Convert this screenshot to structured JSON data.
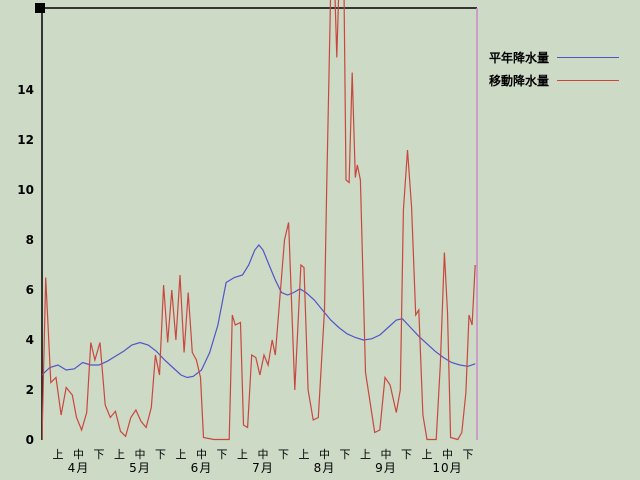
{
  "colors": {
    "background": "#ccdac6",
    "axis": "#000000",
    "text": "#000000",
    "cursor": "#cc88cc"
  },
  "chart_data": {
    "type": "line",
    "title": "",
    "xlabel": "",
    "ylabel": "",
    "ylim": [
      0,
      17.3
    ],
    "yticks": [
      0,
      2,
      4,
      6,
      8,
      10,
      12,
      14
    ],
    "grid": false,
    "legend_position": "top-right",
    "x_axis": {
      "months": [
        "4月",
        "5月",
        "6月",
        "7月",
        "8月",
        "9月",
        "10月"
      ],
      "period_labels": [
        "上",
        "中",
        "下"
      ]
    },
    "legend": [
      {
        "label": "平年降水量",
        "color": "#5055c8"
      },
      {
        "label": "移動降水量",
        "color": "#c9473f"
      }
    ],
    "cursor_line": {
      "x": 20.44,
      "color": "#cc88cc"
    },
    "series": [
      {
        "name": "平年降水量",
        "color": "#5055c8",
        "points": [
          [
            -0.78,
            2.6
          ],
          [
            -0.4,
            2.9
          ],
          [
            0,
            3.0
          ],
          [
            0.4,
            2.8
          ],
          [
            0.8,
            2.85
          ],
          [
            1.2,
            3.1
          ],
          [
            1.6,
            3.0
          ],
          [
            2.0,
            3.0
          ],
          [
            2.4,
            3.15
          ],
          [
            2.8,
            3.35
          ],
          [
            3.2,
            3.55
          ],
          [
            3.6,
            3.8
          ],
          [
            4.0,
            3.9
          ],
          [
            4.4,
            3.8
          ],
          [
            4.8,
            3.55
          ],
          [
            5.2,
            3.2
          ],
          [
            5.6,
            2.9
          ],
          [
            6.0,
            2.6
          ],
          [
            6.3,
            2.5
          ],
          [
            6.6,
            2.55
          ],
          [
            7.0,
            2.8
          ],
          [
            7.4,
            3.5
          ],
          [
            7.8,
            4.6
          ],
          [
            8.2,
            6.3
          ],
          [
            8.6,
            6.5
          ],
          [
            9.0,
            6.6
          ],
          [
            9.3,
            7.0
          ],
          [
            9.6,
            7.6
          ],
          [
            9.8,
            7.8
          ],
          [
            10.0,
            7.6
          ],
          [
            10.3,
            7.0
          ],
          [
            10.6,
            6.4
          ],
          [
            10.9,
            5.9
          ],
          [
            11.2,
            5.8
          ],
          [
            11.5,
            5.9
          ],
          [
            11.8,
            6.05
          ],
          [
            12.1,
            5.9
          ],
          [
            12.5,
            5.6
          ],
          [
            12.9,
            5.2
          ],
          [
            13.3,
            4.8
          ],
          [
            13.7,
            4.5
          ],
          [
            14.1,
            4.25
          ],
          [
            14.5,
            4.1
          ],
          [
            14.9,
            4.0
          ],
          [
            15.3,
            4.05
          ],
          [
            15.7,
            4.2
          ],
          [
            16.1,
            4.5
          ],
          [
            16.5,
            4.8
          ],
          [
            16.8,
            4.85
          ],
          [
            17.2,
            4.5
          ],
          [
            17.6,
            4.15
          ],
          [
            18.0,
            3.85
          ],
          [
            18.4,
            3.55
          ],
          [
            18.8,
            3.3
          ],
          [
            19.2,
            3.1
          ],
          [
            19.6,
            3.0
          ],
          [
            20.0,
            2.95
          ],
          [
            20.35,
            3.05
          ]
        ]
      },
      {
        "name": "移動降水量",
        "color": "#c9473f",
        "points": [
          [
            -0.78,
            0.0
          ],
          [
            -0.6,
            6.5
          ],
          [
            -0.35,
            2.3
          ],
          [
            -0.1,
            2.5
          ],
          [
            0.15,
            1.0
          ],
          [
            0.4,
            2.1
          ],
          [
            0.7,
            1.8
          ],
          [
            0.9,
            0.9
          ],
          [
            1.15,
            0.4
          ],
          [
            1.4,
            1.1
          ],
          [
            1.6,
            3.9
          ],
          [
            1.8,
            3.2
          ],
          [
            2.05,
            3.9
          ],
          [
            2.3,
            1.4
          ],
          [
            2.55,
            0.9
          ],
          [
            2.8,
            1.15
          ],
          [
            3.05,
            0.35
          ],
          [
            3.3,
            0.15
          ],
          [
            3.55,
            0.9
          ],
          [
            3.8,
            1.2
          ],
          [
            4.05,
            0.75
          ],
          [
            4.3,
            0.5
          ],
          [
            4.55,
            1.3
          ],
          [
            4.75,
            3.4
          ],
          [
            4.95,
            2.6
          ],
          [
            5.15,
            6.2
          ],
          [
            5.35,
            3.9
          ],
          [
            5.55,
            6.0
          ],
          [
            5.75,
            4.0
          ],
          [
            5.95,
            6.6
          ],
          [
            6.15,
            3.5
          ],
          [
            6.35,
            5.9
          ],
          [
            6.55,
            3.5
          ],
          [
            6.75,
            3.2
          ],
          [
            6.95,
            2.5
          ],
          [
            7.1,
            0.1
          ],
          [
            7.6,
            0.02
          ],
          [
            8.35,
            0.02
          ],
          [
            8.5,
            5.0
          ],
          [
            8.65,
            4.6
          ],
          [
            8.9,
            4.7
          ],
          [
            9.05,
            0.6
          ],
          [
            9.25,
            0.5
          ],
          [
            9.45,
            3.4
          ],
          [
            9.65,
            3.3
          ],
          [
            9.85,
            2.6
          ],
          [
            10.05,
            3.4
          ],
          [
            10.25,
            3.0
          ],
          [
            10.45,
            4.0
          ],
          [
            10.6,
            3.4
          ],
          [
            11.05,
            8.0
          ],
          [
            11.25,
            8.7
          ],
          [
            11.55,
            2.0
          ],
          [
            11.85,
            7.0
          ],
          [
            12.0,
            6.9
          ],
          [
            12.2,
            2.0
          ],
          [
            12.45,
            0.8
          ],
          [
            12.7,
            0.9
          ],
          [
            13.0,
            5.2
          ],
          [
            13.1,
            9.9
          ],
          [
            13.3,
            18
          ],
          [
            13.5,
            18
          ],
          [
            13.6,
            15.3
          ],
          [
            13.7,
            18
          ],
          [
            13.95,
            18
          ],
          [
            14.05,
            10.4
          ],
          [
            14.2,
            10.3
          ],
          [
            14.35,
            14.7
          ],
          [
            14.5,
            10.5
          ],
          [
            14.6,
            11.0
          ],
          [
            14.75,
            10.4
          ],
          [
            15.0,
            2.7
          ],
          [
            15.15,
            1.9
          ],
          [
            15.45,
            0.3
          ],
          [
            15.7,
            0.4
          ],
          [
            15.95,
            2.5
          ],
          [
            16.2,
            2.2
          ],
          [
            16.5,
            1.1
          ],
          [
            16.7,
            2.0
          ],
          [
            16.85,
            9.2
          ],
          [
            17.05,
            11.6
          ],
          [
            17.25,
            9.3
          ],
          [
            17.45,
            5.0
          ],
          [
            17.6,
            5.2
          ],
          [
            17.8,
            1.0
          ],
          [
            18.0,
            0.02
          ],
          [
            18.45,
            0.02
          ],
          [
            18.65,
            3.0
          ],
          [
            18.85,
            7.5
          ],
          [
            19.0,
            5.1
          ],
          [
            19.15,
            0.1
          ],
          [
            19.5,
            0.02
          ],
          [
            19.7,
            0.3
          ],
          [
            19.9,
            1.9
          ],
          [
            20.05,
            5.0
          ],
          [
            20.2,
            4.6
          ],
          [
            20.35,
            7.0
          ]
        ]
      }
    ]
  }
}
